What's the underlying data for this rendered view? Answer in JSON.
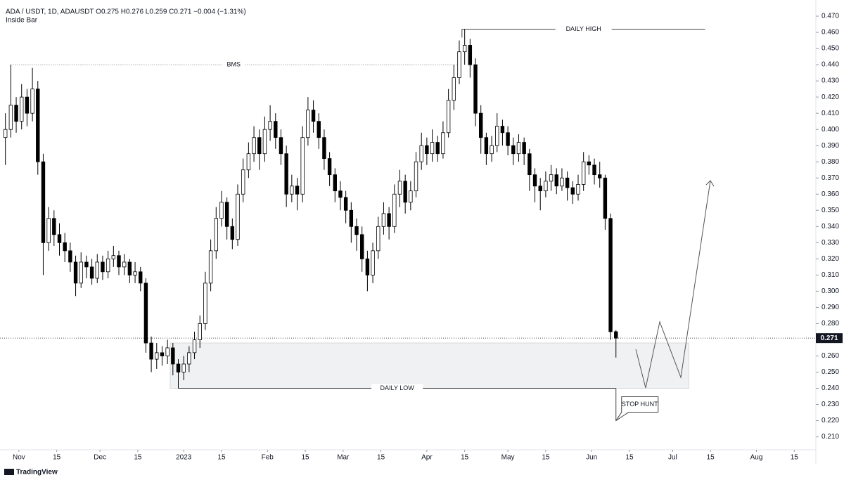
{
  "chart_data": {
    "type": "candlestick",
    "title": "ADA / USDT, 1D, ADAUSDT  O0.275 H0.276 L0.259 C0.271 −0.004 (−1.31%)",
    "subtitle": "Inside Bar",
    "brand": "TradingView",
    "x": [
      "2022-10-27",
      "2022-10-29",
      "2022-10-31",
      "2022-11-02",
      "2022-11-04",
      "2022-11-06",
      "2022-11-08",
      "2022-11-10",
      "2022-11-12",
      "2022-11-14",
      "2022-11-16",
      "2022-11-18",
      "2022-11-20",
      "2022-11-22",
      "2022-11-24",
      "2022-11-26",
      "2022-11-28",
      "2022-11-30",
      "2022-12-02",
      "2022-12-04",
      "2022-12-06",
      "2022-12-08",
      "2022-12-10",
      "2022-12-12",
      "2022-12-14",
      "2022-12-16",
      "2022-12-18",
      "2022-12-20",
      "2022-12-22",
      "2022-12-24",
      "2022-12-26",
      "2022-12-28",
      "2022-12-30",
      "2023-01-01",
      "2023-01-03",
      "2023-01-05",
      "2023-01-07",
      "2023-01-09",
      "2023-01-11",
      "2023-01-13",
      "2023-01-15",
      "2023-01-17",
      "2023-01-19",
      "2023-01-21",
      "2023-01-23",
      "2023-01-25",
      "2023-01-27",
      "2023-01-29",
      "2023-01-31",
      "2023-02-02",
      "2023-02-04",
      "2023-02-06",
      "2023-02-08",
      "2023-02-10",
      "2023-02-12",
      "2023-02-14",
      "2023-02-16",
      "2023-02-18",
      "2023-02-20",
      "2023-02-22",
      "2023-02-24",
      "2023-02-26",
      "2023-02-28",
      "2023-03-02",
      "2023-03-04",
      "2023-03-06",
      "2023-03-08",
      "2023-03-10",
      "2023-03-12",
      "2023-03-14",
      "2023-03-16",
      "2023-03-18",
      "2023-03-20",
      "2023-03-22",
      "2023-03-24",
      "2023-03-26",
      "2023-03-28",
      "2023-03-30",
      "2023-04-01",
      "2023-04-03",
      "2023-04-05",
      "2023-04-07",
      "2023-04-09",
      "2023-04-11",
      "2023-04-13",
      "2023-04-15",
      "2023-04-17",
      "2023-04-19",
      "2023-04-21",
      "2023-04-23",
      "2023-04-25",
      "2023-04-27",
      "2023-04-29",
      "2023-05-01",
      "2023-05-03",
      "2023-05-05",
      "2023-05-07",
      "2023-05-09",
      "2023-05-11",
      "2023-05-13",
      "2023-05-15",
      "2023-05-17",
      "2023-05-19",
      "2023-05-21",
      "2023-05-23",
      "2023-05-25",
      "2023-05-27",
      "2023-05-29",
      "2023-05-31",
      "2023-06-02",
      "2023-06-04",
      "2023-06-06",
      "2023-06-08",
      "2023-06-10"
    ],
    "open": [
      0.395,
      0.4,
      0.415,
      0.405,
      0.42,
      0.41,
      0.425,
      0.38,
      0.33,
      0.345,
      0.335,
      0.33,
      0.325,
      0.318,
      0.305,
      0.318,
      0.315,
      0.308,
      0.318,
      0.312,
      0.32,
      0.322,
      0.315,
      0.318,
      0.31,
      0.312,
      0.305,
      0.268,
      0.258,
      0.262,
      0.26,
      0.265,
      0.255,
      0.25,
      0.255,
      0.262,
      0.27,
      0.28,
      0.305,
      0.325,
      0.345,
      0.355,
      0.34,
      0.332,
      0.36,
      0.375,
      0.385,
      0.395,
      0.385,
      0.4,
      0.405,
      0.395,
      0.385,
      0.36,
      0.365,
      0.36,
      0.395,
      0.412,
      0.405,
      0.395,
      0.382,
      0.372,
      0.362,
      0.358,
      0.35,
      0.34,
      0.335,
      0.32,
      0.31,
      0.325,
      0.34,
      0.348,
      0.34,
      0.36,
      0.368,
      0.355,
      0.362,
      0.38,
      0.39,
      0.385,
      0.392,
      0.385,
      0.398,
      0.418,
      0.432,
      0.448,
      0.452,
      0.44,
      0.41,
      0.395,
      0.385,
      0.39,
      0.402,
      0.398,
      0.39,
      0.385,
      0.392,
      0.385,
      0.372,
      0.365,
      0.362,
      0.368,
      0.372,
      0.365,
      0.37,
      0.364,
      0.36,
      0.366,
      0.38,
      0.378,
      0.372,
      0.37,
      0.345,
      0.275
    ],
    "high": [
      0.41,
      0.44,
      0.42,
      0.428,
      0.425,
      0.438,
      0.43,
      0.385,
      0.352,
      0.35,
      0.342,
      0.336,
      0.33,
      0.322,
      0.324,
      0.322,
      0.32,
      0.323,
      0.322,
      0.325,
      0.328,
      0.325,
      0.323,
      0.32,
      0.318,
      0.315,
      0.308,
      0.272,
      0.268,
      0.266,
      0.27,
      0.268,
      0.258,
      0.26,
      0.266,
      0.275,
      0.285,
      0.312,
      0.332,
      0.352,
      0.362,
      0.358,
      0.345,
      0.366,
      0.382,
      0.392,
      0.402,
      0.4,
      0.408,
      0.415,
      0.41,
      0.4,
      0.39,
      0.372,
      0.37,
      0.402,
      0.42,
      0.418,
      0.41,
      0.4,
      0.386,
      0.376,
      0.368,
      0.362,
      0.355,
      0.345,
      0.34,
      0.325,
      0.33,
      0.346,
      0.355,
      0.352,
      0.366,
      0.375,
      0.372,
      0.368,
      0.386,
      0.398,
      0.395,
      0.4,
      0.396,
      0.405,
      0.425,
      0.44,
      0.455,
      0.462,
      0.456,
      0.444,
      0.415,
      0.398,
      0.396,
      0.41,
      0.406,
      0.402,
      0.395,
      0.397,
      0.395,
      0.388,
      0.376,
      0.37,
      0.374,
      0.378,
      0.376,
      0.376,
      0.374,
      0.368,
      0.372,
      0.386,
      0.384,
      0.382,
      0.38,
      0.372,
      0.348,
      0.276
    ],
    "low": [
      0.378,
      0.395,
      0.398,
      0.4,
      0.402,
      0.405,
      0.372,
      0.31,
      0.325,
      0.328,
      0.322,
      0.318,
      0.312,
      0.297,
      0.302,
      0.308,
      0.304,
      0.305,
      0.307,
      0.308,
      0.315,
      0.31,
      0.31,
      0.305,
      0.305,
      0.3,
      0.262,
      0.25,
      0.252,
      0.254,
      0.255,
      0.248,
      0.24,
      0.245,
      0.25,
      0.258,
      0.265,
      0.276,
      0.3,
      0.32,
      0.34,
      0.332,
      0.326,
      0.328,
      0.355,
      0.37,
      0.38,
      0.375,
      0.38,
      0.393,
      0.388,
      0.378,
      0.352,
      0.355,
      0.35,
      0.355,
      0.39,
      0.398,
      0.388,
      0.375,
      0.365,
      0.355,
      0.35,
      0.342,
      0.33,
      0.325,
      0.312,
      0.3,
      0.305,
      0.32,
      0.335,
      0.332,
      0.336,
      0.352,
      0.348,
      0.35,
      0.358,
      0.375,
      0.378,
      0.38,
      0.38,
      0.382,
      0.395,
      0.412,
      0.428,
      0.44,
      0.432,
      0.402,
      0.385,
      0.378,
      0.38,
      0.386,
      0.39,
      0.384,
      0.378,
      0.38,
      0.378,
      0.362,
      0.355,
      0.35,
      0.358,
      0.362,
      0.36,
      0.362,
      0.356,
      0.354,
      0.356,
      0.362,
      0.372,
      0.366,
      0.364,
      0.338,
      0.27,
      0.259
    ],
    "close": [
      0.4,
      0.415,
      0.405,
      0.42,
      0.41,
      0.425,
      0.38,
      0.33,
      0.345,
      0.335,
      0.33,
      0.325,
      0.318,
      0.305,
      0.318,
      0.315,
      0.308,
      0.318,
      0.312,
      0.32,
      0.322,
      0.315,
      0.318,
      0.31,
      0.312,
      0.305,
      0.268,
      0.258,
      0.262,
      0.26,
      0.265,
      0.255,
      0.25,
      0.255,
      0.262,
      0.27,
      0.28,
      0.305,
      0.325,
      0.345,
      0.355,
      0.34,
      0.332,
      0.36,
      0.375,
      0.385,
      0.395,
      0.385,
      0.4,
      0.405,
      0.395,
      0.385,
      0.36,
      0.365,
      0.36,
      0.395,
      0.412,
      0.405,
      0.395,
      0.382,
      0.372,
      0.362,
      0.358,
      0.35,
      0.34,
      0.335,
      0.32,
      0.31,
      0.325,
      0.34,
      0.348,
      0.34,
      0.36,
      0.368,
      0.355,
      0.362,
      0.38,
      0.39,
      0.385,
      0.392,
      0.385,
      0.398,
      0.418,
      0.432,
      0.448,
      0.452,
      0.44,
      0.41,
      0.395,
      0.385,
      0.39,
      0.402,
      0.398,
      0.39,
      0.385,
      0.392,
      0.385,
      0.372,
      0.365,
      0.362,
      0.368,
      0.372,
      0.365,
      0.37,
      0.364,
      0.36,
      0.366,
      0.38,
      0.378,
      0.372,
      0.37,
      0.345,
      0.275,
      0.271
    ],
    "up_color": "#ffffff",
    "down_color": "#000000",
    "last_price": 0.271,
    "xlim": [
      "2022-10-25",
      "2023-08-23"
    ],
    "xticks": [
      {
        "value": "2022-11-01",
        "label": "Nov"
      },
      {
        "value": "2022-11-15",
        "label": "15"
      },
      {
        "value": "2022-12-01",
        "label": "Dec"
      },
      {
        "value": "2022-12-15",
        "label": "15"
      },
      {
        "value": "2023-01-01",
        "label": "2023"
      },
      {
        "value": "2023-01-15",
        "label": "15"
      },
      {
        "value": "2023-02-01",
        "label": "Feb"
      },
      {
        "value": "2023-02-15",
        "label": "15"
      },
      {
        "value": "2023-03-01",
        "label": "Mar"
      },
      {
        "value": "2023-03-15",
        "label": "15"
      },
      {
        "value": "2023-04-01",
        "label": "Apr"
      },
      {
        "value": "2023-04-15",
        "label": "15"
      },
      {
        "value": "2023-05-01",
        "label": "May"
      },
      {
        "value": "2023-05-15",
        "label": "15"
      },
      {
        "value": "2023-06-01",
        "label": "Jun"
      },
      {
        "value": "2023-06-15",
        "label": "15"
      },
      {
        "value": "2023-07-01",
        "label": "Jul"
      },
      {
        "value": "2023-07-15",
        "label": "15"
      },
      {
        "value": "2023-08-01",
        "label": "Aug"
      },
      {
        "value": "2023-08-15",
        "label": "15"
      }
    ],
    "ylim": [
      0.202,
      0.48
    ],
    "yticks": [
      {
        "value": 0.21,
        "label": "0.210"
      },
      {
        "value": 0.22,
        "label": "0.220"
      },
      {
        "value": 0.23,
        "label": "0.230"
      },
      {
        "value": 0.24,
        "label": "0.240"
      },
      {
        "value": 0.25,
        "label": "0.250"
      },
      {
        "value": 0.26,
        "label": "0.260"
      },
      {
        "value": 0.27,
        "label": "0.270"
      },
      {
        "value": 0.28,
        "label": "0.280"
      },
      {
        "value": 0.29,
        "label": "0.290"
      },
      {
        "value": 0.3,
        "label": "0.300"
      },
      {
        "value": 0.31,
        "label": "0.310"
      },
      {
        "value": 0.32,
        "label": "0.320"
      },
      {
        "value": 0.33,
        "label": "0.330"
      },
      {
        "value": 0.34,
        "label": "0.340"
      },
      {
        "value": 0.35,
        "label": "0.350"
      },
      {
        "value": 0.36,
        "label": "0.360"
      },
      {
        "value": 0.37,
        "label": "0.370"
      },
      {
        "value": 0.38,
        "label": "0.380"
      },
      {
        "value": 0.39,
        "label": "0.390"
      },
      {
        "value": 0.4,
        "label": "0.400"
      },
      {
        "value": 0.41,
        "label": "0.410"
      },
      {
        "value": 0.42,
        "label": "0.420"
      },
      {
        "value": 0.43,
        "label": "0.430"
      },
      {
        "value": 0.44,
        "label": "0.440"
      },
      {
        "value": 0.45,
        "label": "0.450"
      },
      {
        "value": 0.46,
        "label": "0.460"
      },
      {
        "value": 0.47,
        "label": "0.470"
      }
    ],
    "levels": [
      {
        "label": "BMS",
        "value": 0.44,
        "from": "2022-10-29",
        "to": "2023-04-12"
      },
      {
        "label": "DAILY HIGH",
        "value": 0.462,
        "from": "2023-04-14",
        "to": "2023-07-13"
      },
      {
        "label": "DAILY LOW",
        "value": 0.24,
        "from": "2022-12-30",
        "to": "2023-06-10"
      }
    ],
    "zone": {
      "from": "2022-12-27",
      "to": "2023-07-07",
      "low": 0.24,
      "high": 0.268
    },
    "stop_hunt": {
      "label": "STOP HUNT",
      "value": 0.22,
      "date": "2023-06-10"
    }
  }
}
